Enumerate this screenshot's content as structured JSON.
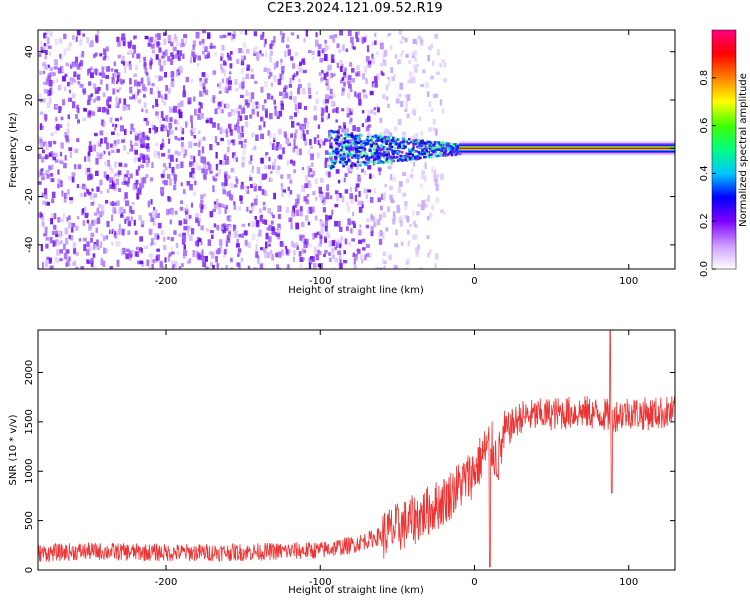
{
  "title": "C2E3.2024.121.09.52.R19",
  "chart_data": [
    {
      "type": "heatmap",
      "xlabel": "Height of straight line (km)",
      "ylabel": "Frequency (Hz)",
      "xlim": [
        -283,
        130
      ],
      "ylim": [
        -50,
        49
      ],
      "x_ticks": [
        -200,
        -100,
        0,
        100
      ],
      "x_tick_labels": [
        "-200",
        "-100",
        "0",
        "100"
      ],
      "y_ticks": [
        -40,
        -20,
        0,
        20,
        40
      ],
      "y_tick_labels": [
        "-40",
        "-20",
        "0",
        "20",
        "40"
      ],
      "colorbar": {
        "label": "Normalized spectral amplitude",
        "range": [
          0,
          1
        ],
        "ticks": [
          0,
          0.2,
          0.4,
          0.6,
          0.8
        ],
        "tick_labels": [
          "0.0",
          "0.2",
          "0.4",
          "0.6",
          "0.8"
        ],
        "colors": [
          "#ffffff",
          "#cc99ff",
          "#7f00ff",
          "#0000ff",
          "#00c8ff",
          "#00ff80",
          "#40ff00",
          "#ffff00",
          "#ff8000",
          "#ff0000",
          "#ff0080"
        ]
      },
      "features": [
        {
          "x_range": [
            -283,
            -60
          ],
          "frequency_range": [
            -50,
            49
          ],
          "amplitude": 0.05,
          "description_value": "broadband noise"
        },
        {
          "x_range": [
            -95,
            -10
          ],
          "frequency_center": 0,
          "amplitude": 0.3
        },
        {
          "x_range": [
            -10,
            130
          ],
          "frequency_center": 0,
          "amplitude": 1.0
        }
      ],
      "grid": false,
      "legend": "none"
    },
    {
      "type": "line",
      "xlabel": "Height of straight line (km)",
      "ylabel": "SNR (10 * v/v)",
      "xlim": [
        -283,
        130
      ],
      "ylim": [
        0,
        2430
      ],
      "x_ticks": [
        -200,
        -100,
        0,
        100
      ],
      "x_tick_labels": [
        "-200",
        "-100",
        "0",
        "100"
      ],
      "y_ticks": [
        0,
        500,
        1000,
        1500,
        2000
      ],
      "y_tick_labels": [
        "0",
        "500",
        "1000",
        "1500",
        "2000"
      ],
      "series": [
        {
          "color": "#ee3333",
          "x": [
            -283,
            -250,
            -200,
            -150,
            -100,
            -80,
            -60,
            -40,
            -20,
            0,
            5,
            10,
            15,
            20,
            30,
            50,
            70,
            90,
            100,
            110,
            130
          ],
          "y": [
            170,
            190,
            175,
            180,
            200,
            250,
            350,
            500,
            700,
            1000,
            1150,
            1300,
            1100,
            1400,
            1550,
            1580,
            1600,
            1560,
            1600,
            1580,
            1600
          ]
        }
      ],
      "annotations": [
        {
          "x": 10,
          "y": 30,
          "kind": "dip"
        },
        {
          "x": 88,
          "y": 2430,
          "kind": "spike"
        },
        {
          "x": 89,
          "y": 780,
          "kind": "dip"
        }
      ],
      "grid": false,
      "legend": "none"
    }
  ]
}
